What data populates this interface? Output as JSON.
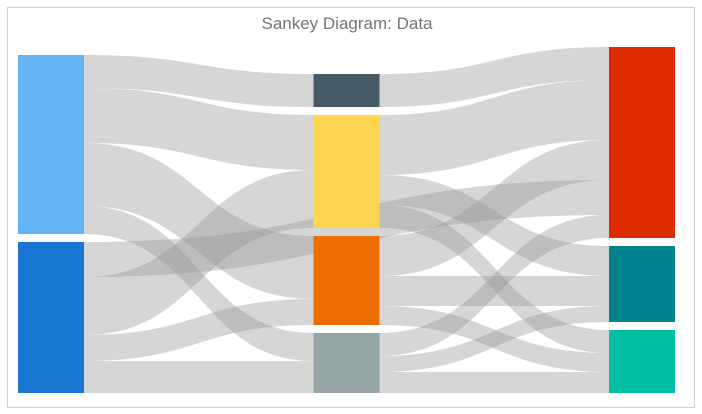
{
  "chart_data": {
    "type": "sankey",
    "title": "Sankey Diagram: Data",
    "nodes": [
      {
        "color": "#64b5f6"
      },
      {
        "color": "#1976d2"
      },
      {
        "color": "#455a64"
      },
      {
        "color": "#ffd54f"
      },
      {
        "color": "#ef6c00"
      },
      {
        "color": "#95a5a6"
      },
      {
        "color": "#dd2c00"
      },
      {
        "color": "#00838f"
      },
      {
        "color": "#00bfa5"
      }
    ],
    "links": [
      {
        "source": 0,
        "target": 2,
        "value": 33
      },
      {
        "source": 0,
        "target": 3,
        "value": 55
      },
      {
        "source": 0,
        "target": 4,
        "value": 63
      },
      {
        "source": 0,
        "target": 5,
        "value": 28
      },
      {
        "source": 1,
        "target": 6,
        "value": 35
      },
      {
        "source": 1,
        "target": 3,
        "value": 58
      },
      {
        "source": 1,
        "target": 4,
        "value": 26
      },
      {
        "source": 1,
        "target": 5,
        "value": 32
      },
      {
        "source": 2,
        "target": 6,
        "value": 33
      },
      {
        "source": 3,
        "target": 6,
        "value": 60
      },
      {
        "source": 3,
        "target": 7,
        "value": 30
      },
      {
        "source": 3,
        "target": 8,
        "value": 23
      },
      {
        "source": 4,
        "target": 6,
        "value": 40
      },
      {
        "source": 4,
        "target": 7,
        "value": 30
      },
      {
        "source": 4,
        "target": 8,
        "value": 19
      },
      {
        "source": 5,
        "target": 6,
        "value": 23
      },
      {
        "source": 5,
        "target": 7,
        "value": 16
      },
      {
        "source": 5,
        "target": 8,
        "value": 21
      }
    ]
  }
}
